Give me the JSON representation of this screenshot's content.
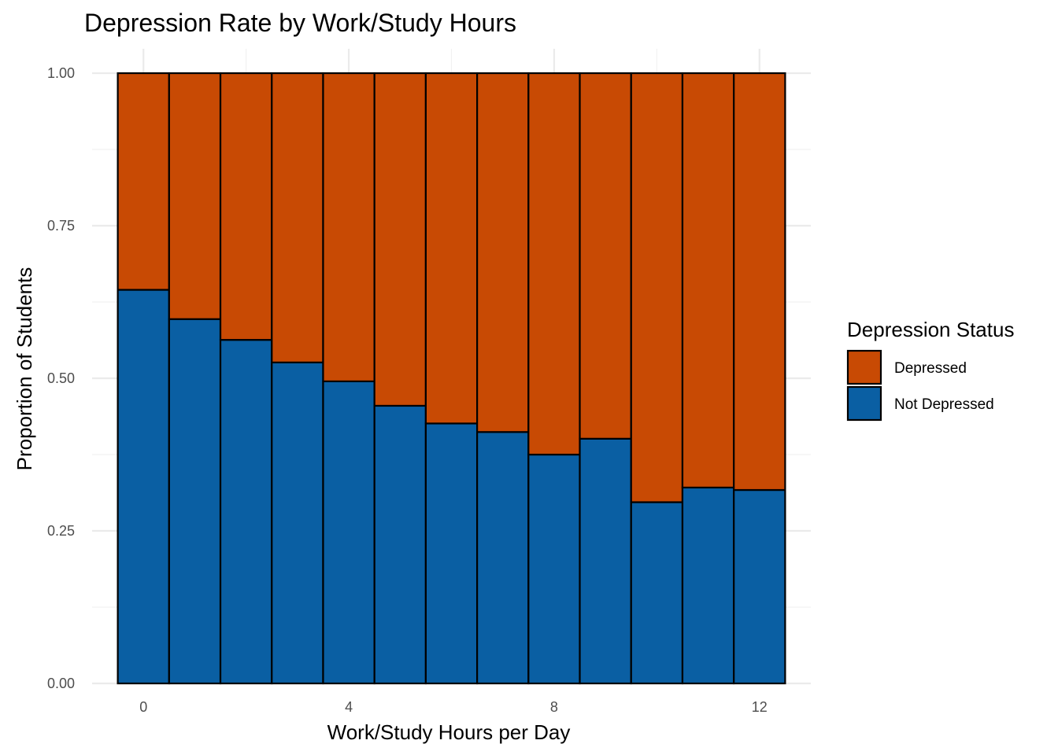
{
  "chart_data": {
    "type": "bar",
    "stacked": true,
    "title": "Depression Rate by Work/Study Hours",
    "xlabel": "Work/Study Hours per Day",
    "ylabel": "Proportion of Students",
    "x": [
      0,
      1,
      2,
      3,
      4,
      5,
      6,
      7,
      8,
      9,
      10,
      11,
      12
    ],
    "x_ticks": [
      0,
      4,
      8,
      12
    ],
    "x_tick_labels": [
      "0",
      "4",
      "8",
      "12"
    ],
    "xlim": [
      -1,
      13
    ],
    "y_ticks": [
      0,
      0.25,
      0.5,
      0.75,
      1.0
    ],
    "y_tick_labels": [
      "0.00",
      "0.25",
      "0.50",
      "0.75",
      "1.00"
    ],
    "ylim": [
      0,
      1.04
    ],
    "grid": true,
    "legend": {
      "title": "Depression Status",
      "placement": "right",
      "entries": [
        "Depressed",
        "Not Depressed"
      ]
    },
    "series": [
      {
        "name": "Not Depressed",
        "color": "#0a5fa3",
        "values": [
          0.645,
          0.597,
          0.563,
          0.526,
          0.495,
          0.455,
          0.426,
          0.412,
          0.375,
          0.401,
          0.297,
          0.321,
          0.317
        ]
      },
      {
        "name": "Depressed",
        "color": "#c84a04",
        "values": [
          0.355,
          0.403,
          0.437,
          0.474,
          0.505,
          0.545,
          0.574,
          0.588,
          0.625,
          0.599,
          0.703,
          0.679,
          0.683
        ]
      }
    ]
  }
}
